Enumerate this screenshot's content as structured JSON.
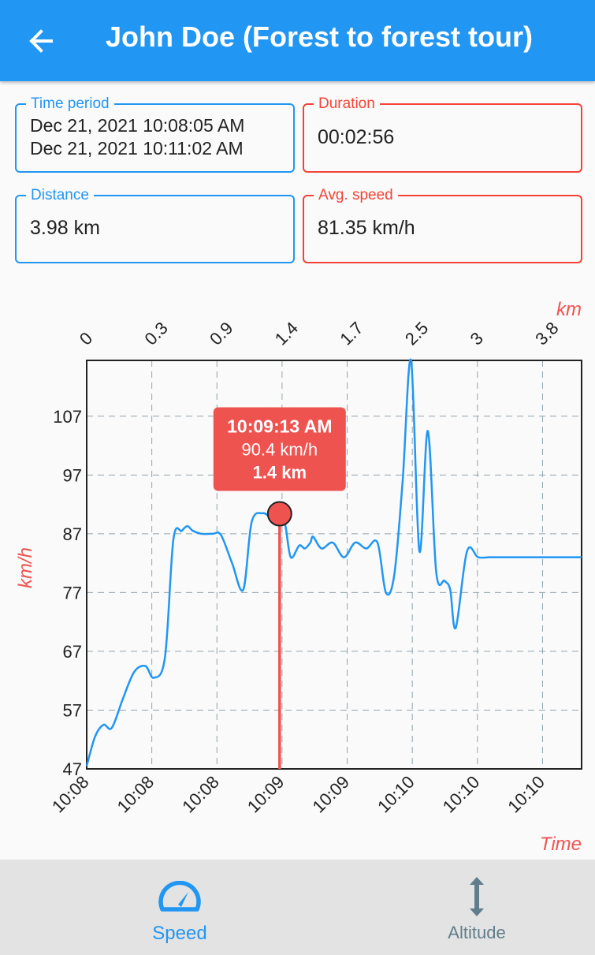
{
  "header": {
    "title": "John Doe (Forest to forest tour)",
    "back_icon": "arrow-back-icon"
  },
  "stats": {
    "time_period": {
      "label": "Time period",
      "start": "Dec 21, 2021 10:08:05 AM",
      "end": "Dec 21, 2021 10:11:02 AM"
    },
    "duration": {
      "label": "Duration",
      "value": "00:02:56"
    },
    "distance": {
      "label": "Distance",
      "value": "3.98 km"
    },
    "avg_speed": {
      "label": "Avg. speed",
      "value": "81.35 km/h"
    }
  },
  "tooltip": {
    "time": "10:09:13 AM",
    "speed": "90.4 km/h",
    "distance": "1.4 km"
  },
  "chart_data": {
    "type": "line",
    "ylabel": "km/h",
    "xlabel": "Time",
    "x2label": "km",
    "y_ticks": [
      "47",
      "57",
      "67",
      "77",
      "87",
      "97",
      "107"
    ],
    "x_ticks": [
      "10:08",
      "10:08",
      "10:08",
      "10:09",
      "10:09",
      "10:10",
      "10:10",
      "10:10"
    ],
    "x2_ticks": [
      "0",
      "0.3",
      "0.9",
      "1.4",
      "1.7",
      "2.5",
      "3",
      "3.8"
    ],
    "ylim": [
      47,
      116.5
    ],
    "xlim": [
      0,
      177
    ],
    "grid": true,
    "series": [
      {
        "x": [
          0,
          3,
          6,
          9,
          13,
          17,
          21,
          24,
          28,
          31,
          34,
          36,
          38,
          41,
          45,
          48,
          52,
          56,
          59,
          63,
          66,
          69,
          71,
          73,
          76,
          78,
          80,
          81,
          84,
          88,
          92,
          96,
          100,
          104,
          107,
          110,
          113,
          116,
          119,
          122,
          125,
          128,
          130,
          132,
          136,
          140,
          144,
          146,
          148,
          150,
          152,
          154,
          155,
          156,
          158,
          160,
          162,
          164,
          166,
          168,
          170,
          172,
          174,
          177
        ],
        "values": [
          47.5,
          52.5,
          54.5,
          54,
          59,
          63.5,
          64.5,
          62.5,
          66,
          86,
          87.5,
          88.3,
          87.5,
          87,
          87,
          86.8,
          82,
          77.5,
          89,
          90.5,
          89.8,
          90.4,
          88.5,
          83,
          85,
          84.5,
          85.5,
          86.5,
          84.5,
          85.5,
          83,
          85.5,
          84.5,
          85.5,
          77,
          80,
          96,
          116.5,
          84,
          104.5,
          80.5,
          79,
          77.5,
          71,
          84,
          83,
          83,
          83,
          83,
          83,
          83,
          83,
          83,
          83,
          83,
          83,
          83,
          83,
          83,
          83,
          83,
          83,
          83,
          83
        ]
      }
    ],
    "highlight": {
      "x": 69,
      "y": 90.4
    },
    "colors": {
      "line": "#2196f3",
      "accent": "#ef5350",
      "grid": "#90a4ae"
    }
  },
  "bottom_nav": {
    "items": [
      {
        "label": "Speed",
        "icon": "speedometer-icon",
        "active": true
      },
      {
        "label": "Altitude",
        "icon": "vertical-arrows-icon",
        "active": false
      }
    ]
  }
}
